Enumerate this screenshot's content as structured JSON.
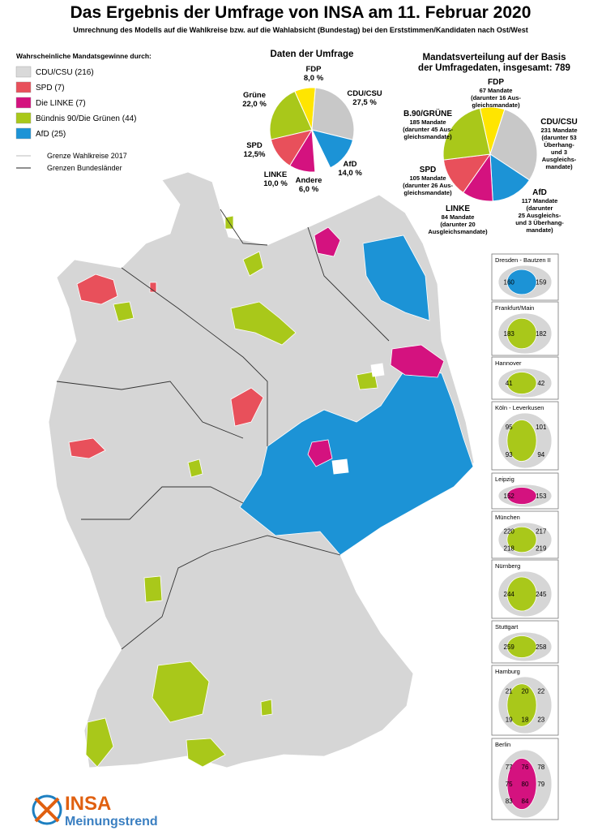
{
  "header": {
    "title": "Das Ergebnis der Umfrage von INSA am 11. Februar 2020",
    "subtitle": "Umrechnung des Modells auf die Wahlkreise bzw. auf die Wahlabsicht (Bundestag) bei den Erststimmen/Kandidaten nach Ost/West"
  },
  "legend": {
    "title": "Wahrscheinliche Mandatsgewinne durch:",
    "items": [
      {
        "label": "CDU/CSU (216)",
        "color": "#d9d9d9"
      },
      {
        "label": "SPD (7)",
        "color": "#e8505b"
      },
      {
        "label": "Die LINKE (7)",
        "color": "#d4127f"
      },
      {
        "label": "Bündnis 90/Die Grünen (44)",
        "color": "#a9c81a"
      },
      {
        "label": "AfD (25)",
        "color": "#1c93d6"
      }
    ],
    "lines": [
      {
        "label": "Grenze Wahlkreise 2017",
        "color": "#bbbbbb"
      },
      {
        "label": "Grenzen Bundesländer",
        "color": "#222222"
      }
    ]
  },
  "chart_data": [
    {
      "type": "pie",
      "title": [
        "Daten der Umfrage"
      ],
      "categories": [
        "FDP",
        "CDU/CSU",
        "AfD",
        "Andere",
        "LINKE",
        "SPD",
        "Grüne"
      ],
      "values": [
        8,
        27.5,
        14,
        6,
        10,
        12.5,
        22
      ],
      "value_labels": [
        "8,0 %",
        "27,5 %",
        "14,0 %",
        "6,0 %",
        "10,0 %",
        "12,5%",
        "22,0 %"
      ],
      "colors": [
        "#ffe500",
        "#c8c8c8",
        "#1c93d6",
        "#ffffff",
        "#d4127f",
        "#e8505b",
        "#a9c81a"
      ]
    },
    {
      "type": "pie",
      "title": [
        "Mandatsverteilung auf der Basis",
        "der Umfragedaten, insgesamt: 789"
      ],
      "categories": [
        "FDP",
        "CDU/CSU",
        "AfD",
        "LINKE",
        "SPD",
        "B.90/GRÜNE"
      ],
      "values": [
        67,
        231,
        117,
        84,
        105,
        185
      ],
      "value_labels": [
        "67 Mandate",
        "231 Mandate",
        "117 Mandate",
        "84 Mandate",
        "105 Mandate",
        "185 Mandate"
      ],
      "details": [
        [
          "(darunter 16 Aus-",
          "gleichsmandate)"
        ],
        [
          "(darunter 53",
          "Überhang-",
          "und 3",
          "Ausgleichs-",
          "mandate)"
        ],
        [
          "(darunter",
          "25 Ausgleichs-",
          "und 3 Überhang-",
          "mandate)"
        ],
        [
          "(darunter 20",
          "Ausgleichsmandate)"
        ],
        [
          "(darunter 26 Aus-",
          "gleichsmandate)"
        ],
        [
          "(darunter 45 Aus-",
          "gleichsmandate)"
        ]
      ],
      "colors": [
        "#ffe500",
        "#c8c8c8",
        "#1c93d6",
        "#d4127f",
        "#e8505b",
        "#a9c81a"
      ]
    }
  ],
  "insets": [
    {
      "title": "Dresden - Bautzen II",
      "labels": [
        "160",
        "159"
      ],
      "color": "#1c93d6"
    },
    {
      "title": "Frankfurt/Main",
      "labels": [
        "183",
        "182"
      ],
      "color": "#a9c81a"
    },
    {
      "title": "Hannover",
      "labels": [
        "41",
        "42"
      ],
      "color": "#a9c81a"
    },
    {
      "title": "Köln - Leverkusen",
      "labels": [
        "95",
        "101",
        "93",
        "94"
      ],
      "color": "#a9c81a"
    },
    {
      "title": "Leipzig",
      "labels": [
        "152",
        "153"
      ],
      "color": "#d4127f"
    },
    {
      "title": "München",
      "labels": [
        "220",
        "217",
        "218",
        "219"
      ],
      "color": "#a9c81a"
    },
    {
      "title": "Nürnberg",
      "labels": [
        "244",
        "245"
      ],
      "color": "#a9c81a"
    },
    {
      "title": "Stuttgart",
      "labels": [
        "259",
        "258"
      ],
      "color": "#a9c81a"
    },
    {
      "title": "Hamburg",
      "labels": [
        "21",
        "20",
        "22",
        "19",
        "18",
        "23"
      ],
      "color": "#a9c81a"
    },
    {
      "title": "Berlin",
      "labels": [
        "77",
        "76",
        "78",
        "75",
        "80",
        "79",
        "83",
        "84"
      ],
      "color": "#d4127f"
    }
  ],
  "logo": {
    "brand": "INSA",
    "tagline": "Meinungstrend"
  }
}
